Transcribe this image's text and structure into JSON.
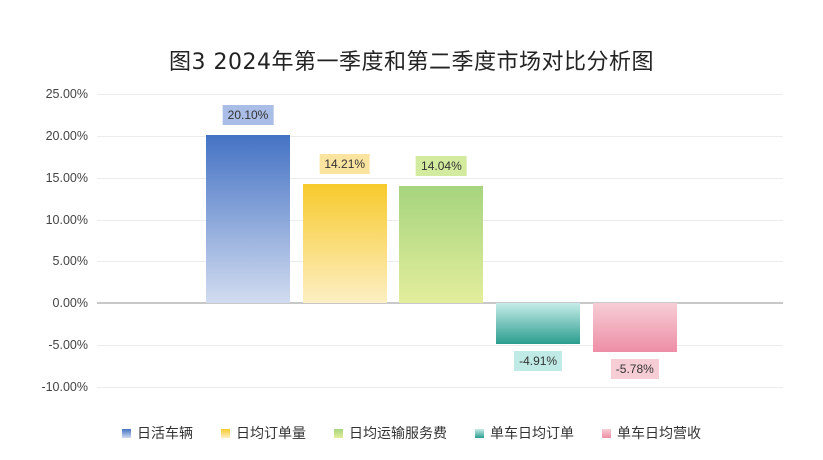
{
  "chart_data": {
    "type": "bar",
    "title": "图3 2024年第一季度和第二季度市场对比分析图",
    "xlabel": "",
    "ylabel": "",
    "ylim": [
      -0.1,
      0.25
    ],
    "yticks": [
      "25.00%",
      "20.00%",
      "15.00%",
      "10.00%",
      "5.00%",
      "0.00%",
      "-5.00%",
      "-10.00%"
    ],
    "ytick_values": [
      0.25,
      0.2,
      0.15,
      0.1,
      0.05,
      0.0,
      -0.05,
      -0.1
    ],
    "grid": true,
    "legend_position": "bottom",
    "categories": [
      "日活车辆",
      "日均订单量",
      "日均运输服务费",
      "单车日均订单",
      "单车日均营收"
    ],
    "values": [
      0.201,
      0.1421,
      0.1404,
      -0.0491,
      -0.0578
    ],
    "data_labels": [
      "20.10%",
      "14.21%",
      "14.04%",
      "-4.91%",
      "-5.78%"
    ],
    "series": [
      {
        "name": "日活车辆",
        "value": 0.201,
        "label": "20.10%",
        "color_top": "#4472c4",
        "color_bottom": "#d2dcf0",
        "label_bg": "#aabde6"
      },
      {
        "name": "日均订单量",
        "value": 0.1421,
        "label": "14.21%",
        "color_top": "#f7ca2c",
        "color_bottom": "#fdefc4",
        "label_bg": "#fbe3a0"
      },
      {
        "name": "日均运输服务费",
        "value": 0.1404,
        "label": "14.04%",
        "color_top": "#a6d47e",
        "color_bottom": "#e3ee9c",
        "label_bg": "#d3eb9e"
      },
      {
        "name": "单车日均订单",
        "value": -0.0491,
        "label": "-4.91%",
        "color_top": "#c6ece8",
        "color_bottom": "#2a9d8f",
        "label_bg": "#bfeae6"
      },
      {
        "name": "单车日均营收",
        "value": -0.0578,
        "label": "-5.78%",
        "color_top": "#f6cdd5",
        "color_bottom": "#ee8ea6",
        "label_bg": "#f6cdd5"
      }
    ]
  }
}
